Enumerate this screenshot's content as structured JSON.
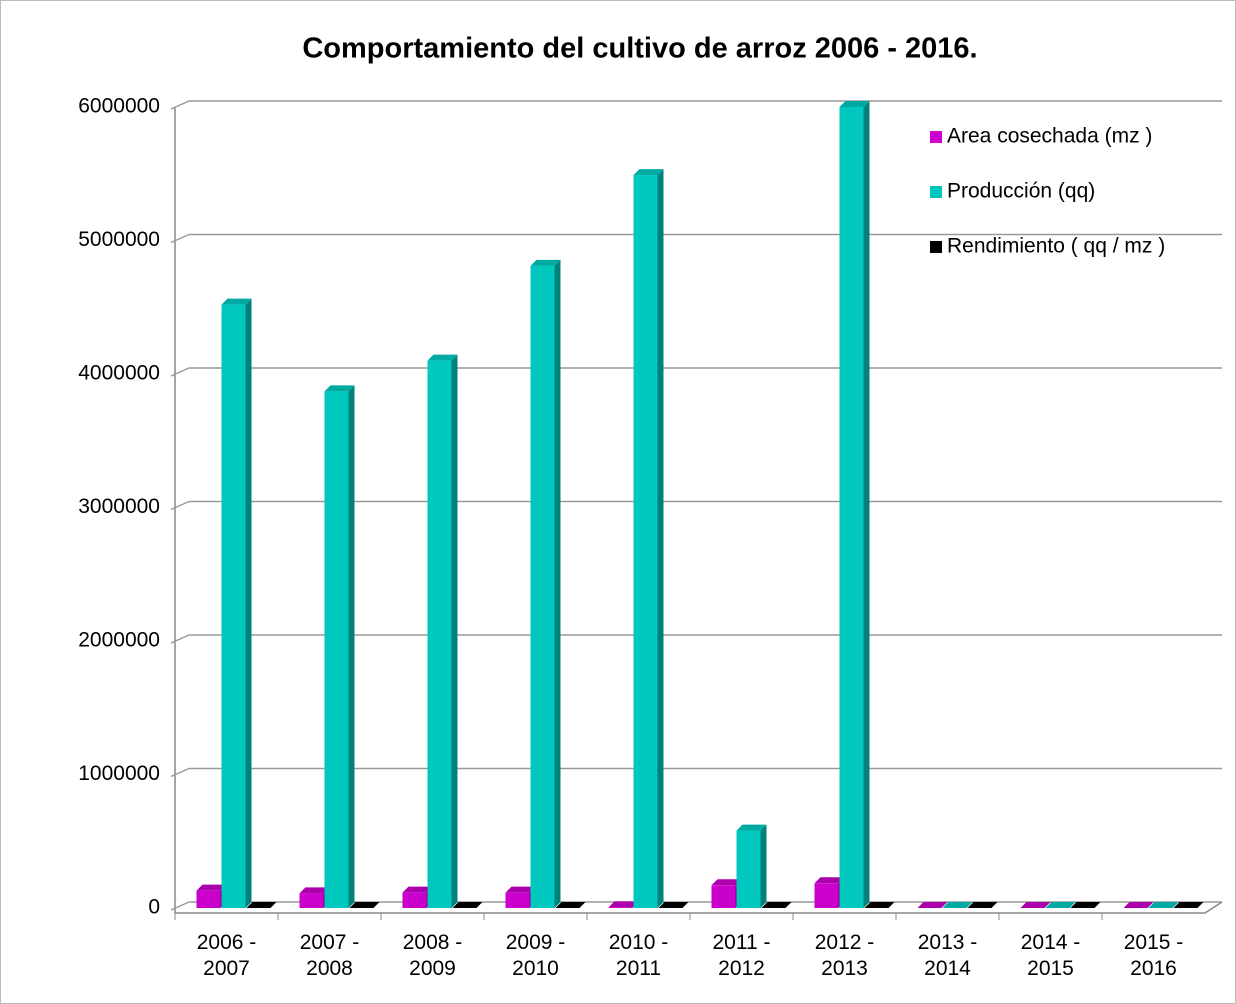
{
  "chart_data": {
    "type": "bar3d",
    "title": "Comportamiento del cultivo de arroz 2006 - 2016.",
    "categories": [
      "2006 - 2007",
      "2007 - 2008",
      "2008 - 2009",
      "2009 - 2010",
      "2010 - 2011",
      "2011 - 2012",
      "2012 - 2013",
      "2013 - 2014",
      "2014 - 2015",
      "2015 - 2016"
    ],
    "series": [
      {
        "name": "Area cosechada (mz )",
        "color": "#cc00cc",
        "values": [
          130000,
          110000,
          115000,
          115000,
          5000,
          170000,
          185000,
          0,
          0,
          0
        ]
      },
      {
        "name": "Producción (qq)",
        "color": "#00c8be",
        "values": [
          4520000,
          3870000,
          4100000,
          4810000,
          5490000,
          580000,
          6000000,
          0,
          0,
          0
        ]
      },
      {
        "name": "Rendimiento ( qq / mz )",
        "color": "#000000",
        "values": [
          40,
          40,
          40,
          40,
          40,
          40,
          40,
          0,
          0,
          0
        ]
      }
    ],
    "ylim": [
      0,
      6000000
    ],
    "yticks": [
      0,
      1000000,
      2000000,
      3000000,
      4000000,
      5000000,
      6000000
    ],
    "grid": true,
    "legend": "top-right"
  }
}
